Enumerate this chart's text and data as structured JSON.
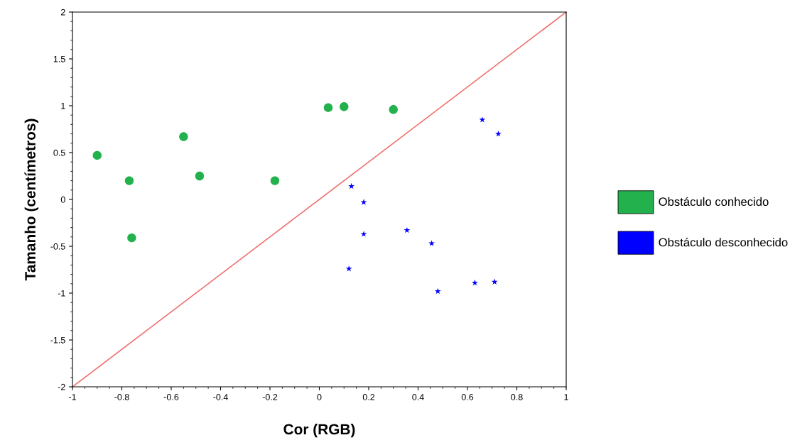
{
  "chart_data": {
    "type": "scatter",
    "xlabel": "Cor (RGB)",
    "ylabel": "Tamanho (centímetros)",
    "xlim": [
      -1,
      1
    ],
    "ylim": [
      -2,
      2
    ],
    "xticks": [
      -1,
      -0.8,
      -0.6,
      -0.4,
      -0.2,
      0,
      0.2,
      0.4,
      0.6,
      0.8,
      1
    ],
    "yticks": [
      -2,
      -1.5,
      -1,
      -0.5,
      0,
      0.5,
      1,
      1.5,
      2
    ],
    "grid": false,
    "legend": "right",
    "series": [
      {
        "name": "Obstáculo conhecido",
        "color": "#22b14c",
        "marker": "circle",
        "x": [
          -0.9,
          -0.77,
          -0.76,
          -0.55,
          -0.485,
          -0.18,
          0.036,
          0.1,
          0.3
        ],
        "values": [
          0.47,
          0.2,
          -0.41,
          0.67,
          0.25,
          0.2,
          0.98,
          0.99,
          0.96
        ]
      },
      {
        "name": "Obstáculo desconhecido",
        "color": "#0000ff",
        "marker": "star",
        "x": [
          0.13,
          0.18,
          0.18,
          0.355,
          0.455,
          0.12,
          0.48,
          0.63,
          0.71,
          0.66,
          0.725
        ],
        "values": [
          0.14,
          -0.03,
          -0.37,
          -0.33,
          -0.47,
          -0.74,
          -0.98,
          -0.89,
          -0.88,
          0.85,
          0.7
        ]
      },
      {
        "type": "line",
        "color": "#f07070",
        "x": [
          -1,
          1
        ],
        "values": [
          -2,
          2
        ],
        "line_style": "solid",
        "marker": "none"
      }
    ]
  }
}
